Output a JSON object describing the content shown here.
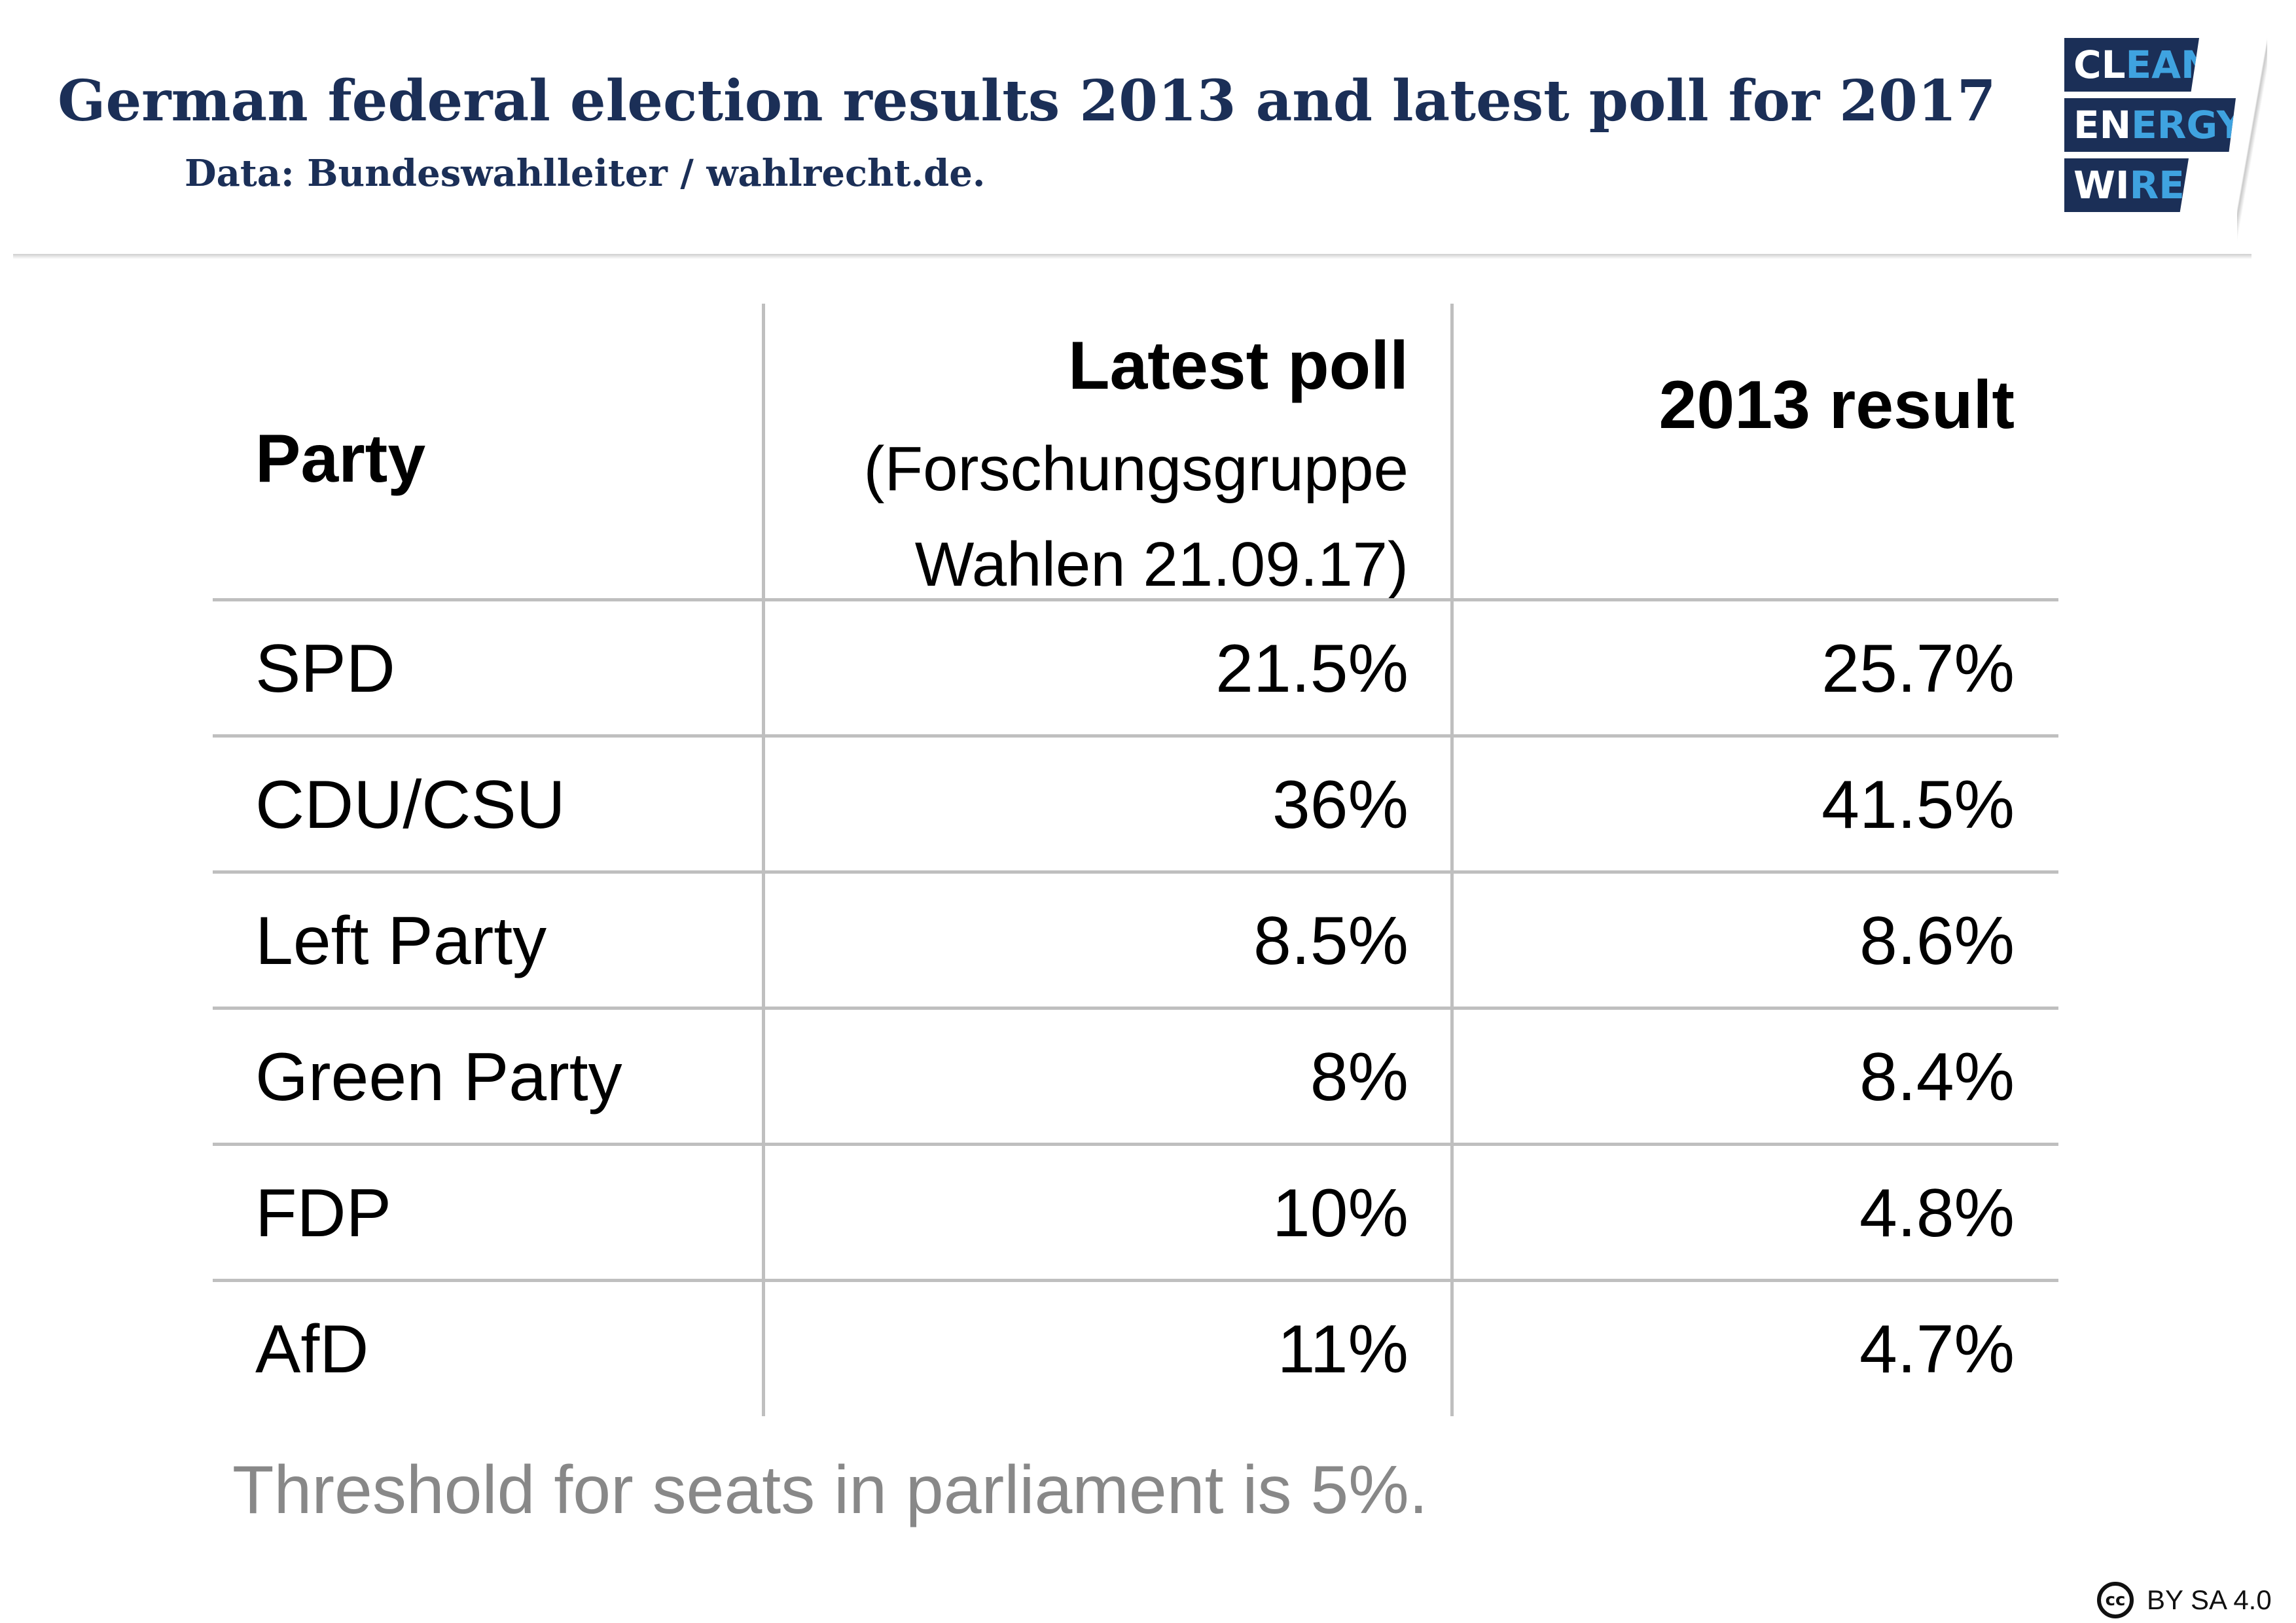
{
  "header": {
    "title": "German federal election results 2013 and latest poll for 2017",
    "subtitle": "Data: Bundeswahlleiter / wahlrecht.de."
  },
  "logo": {
    "line1_a": "CL",
    "line1_b": "EAN",
    "line2_a": "EN",
    "line2_b": "ERGY",
    "line3_a": "WI",
    "line3_b": "RE",
    "colors": {
      "navy": "#1b2f57",
      "accent": "#3fa3e0"
    }
  },
  "chart_data": {
    "type": "table",
    "columns": [
      "Party",
      "Latest poll",
      "2013 result"
    ],
    "column_subheader": "(Forschungsgruppe\nWahlen 21.09.17)",
    "rows": [
      {
        "party": "SPD",
        "poll": "21.5%",
        "result": "25.7%"
      },
      {
        "party": "CDU/CSU",
        "poll": "36%",
        "result": "41.5%"
      },
      {
        "party": "Left Party",
        "poll": "8.5%",
        "result": "8.6%"
      },
      {
        "party": "Green Party",
        "poll": "8%",
        "result": "8.4%"
      },
      {
        "party": "FDP",
        "poll": "10%",
        "result": "4.8%"
      },
      {
        "party": "AfD",
        "poll": "11%",
        "result": "4.7%"
      }
    ]
  },
  "note": "Threshold for seats in parliament is 5%.",
  "license": {
    "icon": "cc-icon",
    "text": "BY SA 4.0"
  }
}
